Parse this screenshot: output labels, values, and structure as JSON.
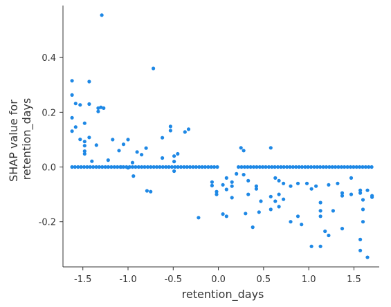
{
  "chart_data": {
    "type": "scatter",
    "xlabel": "retention_days",
    "ylabel_lines": [
      "SHAP value for",
      "retention_days"
    ],
    "xlim": [
      -1.72,
      1.78
    ],
    "ylim": [
      -0.365,
      0.59
    ],
    "x_ticks": [
      -1.5,
      -1.0,
      -0.5,
      0.0,
      0.5,
      1.0,
      1.5
    ],
    "x_tick_labels": [
      "-1.5",
      "-1.0",
      "-0.5",
      "0.0",
      "0.5",
      "1.0",
      "1.5"
    ],
    "y_ticks": [
      -0.2,
      0.0,
      0.2,
      0.4
    ],
    "y_tick_labels": [
      "-0.2",
      "0.0",
      "0.2",
      "0.4"
    ],
    "grid": false,
    "point_color": "#1E88E5",
    "points": [
      [
        -1.62,
        0.315
      ],
      [
        -1.62,
        0.263
      ],
      [
        -1.58,
        0.232
      ],
      [
        -1.62,
        0.18
      ],
      [
        -1.58,
        0.146
      ],
      [
        -1.62,
        0.131
      ],
      [
        -1.53,
        0.227
      ],
      [
        -1.48,
        0.16
      ],
      [
        -1.53,
        0.101
      ],
      [
        -1.48,
        0.093
      ],
      [
        -1.48,
        0.078
      ],
      [
        -1.48,
        0.058
      ],
      [
        -1.48,
        0.048
      ],
      [
        -1.43,
        0.312
      ],
      [
        -1.43,
        0.23
      ],
      [
        -1.43,
        0.108
      ],
      [
        -1.4,
        0.021
      ],
      [
        -1.33,
        0.215
      ],
      [
        -1.33,
        0.203
      ],
      [
        -1.3,
        0.218
      ],
      [
        -1.27,
        0.215
      ],
      [
        -1.29,
        0.555
      ],
      [
        -1.35,
        0.08
      ],
      [
        -1.22,
        0.025
      ],
      [
        -1.17,
        0.1
      ],
      [
        -1.1,
        0.06
      ],
      [
        -1.05,
        0.083
      ],
      [
        -1.08,
        0.0
      ],
      [
        -1.0,
        0.1
      ],
      [
        -1.0,
        -0.003
      ],
      [
        -0.95,
        0.016
      ],
      [
        -0.94,
        -0.033
      ],
      [
        -0.9,
        0.055
      ],
      [
        -0.85,
        0.045
      ],
      [
        -0.8,
        0.069
      ],
      [
        -0.79,
        -0.087
      ],
      [
        -0.75,
        -0.09
      ],
      [
        -0.72,
        0.36
      ],
      [
        -0.62,
        0.107
      ],
      [
        -0.62,
        0.033
      ],
      [
        -0.53,
        0.148
      ],
      [
        -0.53,
        0.133
      ],
      [
        -0.49,
        0.04
      ],
      [
        -0.49,
        0.02
      ],
      [
        -0.49,
        -0.015
      ],
      [
        -0.45,
        0.048
      ],
      [
        -0.37,
        0.128
      ],
      [
        -0.33,
        0.138
      ],
      [
        -0.22,
        -0.185
      ],
      [
        -0.07,
        -0.055
      ],
      [
        -0.07,
        -0.068
      ],
      [
        -0.02,
        -0.09
      ],
      [
        -0.02,
        -0.1
      ],
      [
        0.05,
        -0.065
      ],
      [
        0.05,
        -0.172
      ],
      [
        0.09,
        -0.04
      ],
      [
        0.09,
        -0.082
      ],
      [
        0.09,
        -0.18
      ],
      [
        0.15,
        -0.055
      ],
      [
        0.15,
        -0.07
      ],
      [
        0.15,
        -0.112
      ],
      [
        0.2,
        -0.025
      ],
      [
        0.25,
        0.07
      ],
      [
        0.28,
        0.06
      ],
      [
        0.28,
        -0.028
      ],
      [
        0.3,
        -0.17
      ],
      [
        0.33,
        -0.05
      ],
      [
        0.33,
        -0.1
      ],
      [
        0.38,
        -0.22
      ],
      [
        0.42,
        -0.07
      ],
      [
        0.42,
        -0.08
      ],
      [
        0.45,
        -0.165
      ],
      [
        0.47,
        -0.125
      ],
      [
        0.58,
        -0.108
      ],
      [
        0.58,
        -0.155
      ],
      [
        0.58,
        0.07
      ],
      [
        0.63,
        -0.04
      ],
      [
        0.63,
        -0.125
      ],
      [
        0.67,
        -0.05
      ],
      [
        0.67,
        -0.1
      ],
      [
        0.67,
        -0.145
      ],
      [
        0.72,
        -0.06
      ],
      [
        0.72,
        -0.118
      ],
      [
        0.8,
        -0.07
      ],
      [
        0.8,
        -0.2
      ],
      [
        0.88,
        -0.06
      ],
      [
        0.88,
        -0.18
      ],
      [
        0.92,
        -0.21
      ],
      [
        0.98,
        -0.06
      ],
      [
        1.03,
        -0.08
      ],
      [
        1.03,
        -0.29
      ],
      [
        1.08,
        -0.07
      ],
      [
        1.13,
        -0.13
      ],
      [
        1.13,
        -0.16
      ],
      [
        1.13,
        -0.18
      ],
      [
        1.13,
        -0.29
      ],
      [
        1.18,
        -0.235
      ],
      [
        1.22,
        -0.065
      ],
      [
        1.22,
        -0.25
      ],
      [
        1.27,
        -0.16
      ],
      [
        1.32,
        -0.06
      ],
      [
        1.37,
        -0.095
      ],
      [
        1.37,
        -0.105
      ],
      [
        1.37,
        -0.225
      ],
      [
        1.47,
        -0.04
      ],
      [
        1.47,
        -0.1
      ],
      [
        1.57,
        -0.085
      ],
      [
        1.57,
        -0.095
      ],
      [
        1.57,
        -0.265
      ],
      [
        1.57,
        -0.305
      ],
      [
        1.6,
        -0.12
      ],
      [
        1.6,
        -0.155
      ],
      [
        1.6,
        -0.2
      ],
      [
        1.65,
        -0.085
      ],
      [
        1.65,
        -0.33
      ],
      [
        1.7,
        -0.105
      ],
      [
        1.7,
        -0.11
      ]
    ],
    "zero_line_x_start": -1.62,
    "zero_line_x_end": 1.72,
    "zero_line_gap": [
      0.0,
      0.22
    ],
    "zero_line_step": 0.0335
  }
}
